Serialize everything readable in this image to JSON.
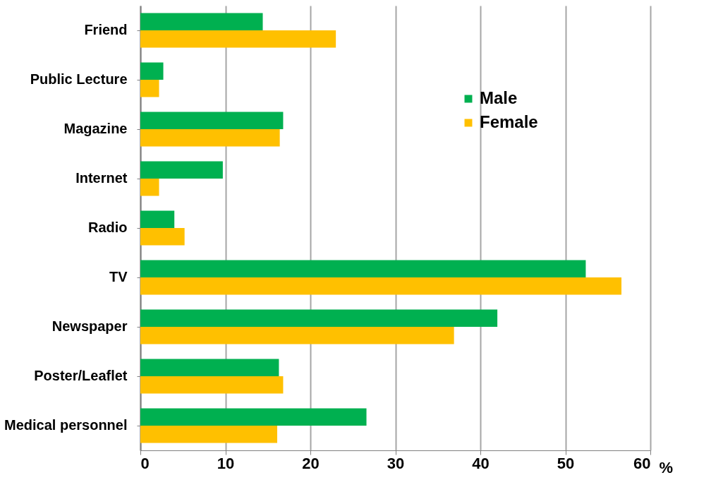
{
  "chart_data": {
    "type": "bar",
    "orientation": "horizontal",
    "xlabel": "%",
    "categories": [
      "Friend",
      "Public Lecture",
      "Magazine",
      "Internet",
      "Radio",
      "TV",
      "Newspaper",
      "Poster/Leaflet",
      "Medical personnel"
    ],
    "series": [
      {
        "name": "Male",
        "color": "#00b050",
        "values": [
          14.4,
          2.7,
          16.8,
          9.7,
          4.0,
          52.4,
          42.0,
          16.3,
          26.6
        ]
      },
      {
        "name": "Female",
        "color": "#ffc000",
        "values": [
          23.0,
          2.2,
          16.4,
          2.2,
          5.2,
          56.6,
          36.9,
          16.8,
          16.1
        ]
      }
    ],
    "xlim": [
      0,
      60
    ],
    "xticks": [
      0,
      10,
      20,
      30,
      40,
      50,
      60
    ],
    "grid": "x",
    "legend": "top right"
  }
}
